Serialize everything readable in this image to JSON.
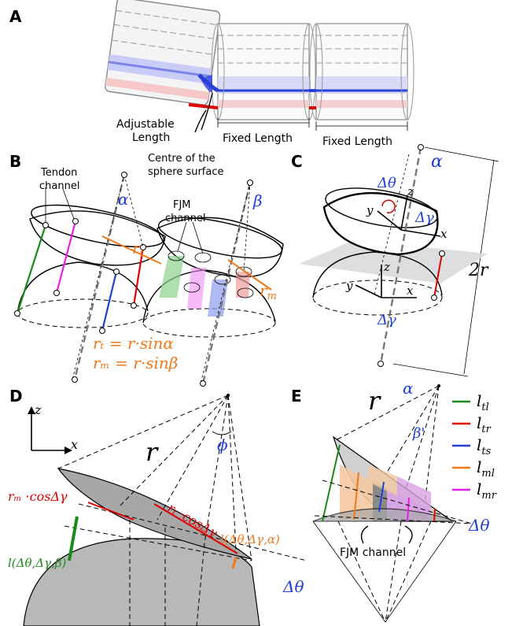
{
  "panels": {
    "a": {
      "letter": "A",
      "adjustable_1": "Adjustable",
      "adjustable_2": "Length",
      "fixed_1": "Fixed Length",
      "fixed_2": "Fixed Length"
    },
    "b": {
      "letter": "B",
      "centre_1": "Centre of the",
      "centre_2": "sphere surface",
      "tendon_1": "Tendon",
      "tendon_2": "channel",
      "fjm_1": "FJM",
      "fjm_2": "channel",
      "alpha": "α",
      "beta": "β",
      "rt": "r",
      "rt_sub": "t",
      "rm": "r",
      "rm_sub": "m",
      "eq1": "rₜ = r·sinα",
      "eq2": "rₘ = r·sinβ"
    },
    "c": {
      "letter": "C",
      "alpha": "α",
      "dtheta": "Δθ",
      "dgamma_top": "Δγ",
      "dgamma_bot": "Δγ",
      "z1": "z",
      "y1": "y",
      "x1": "x",
      "z2": "z",
      "y2": "y",
      "x2": "x",
      "two_r": "2r"
    },
    "d": {
      "letter": "D",
      "z": "z",
      "x": "x",
      "r": "r",
      "phi": "ϕ",
      "rm_cos": "rₘ ·cosΔγ",
      "rt_cos": "rₜ ·cosΔγ",
      "l_left": "l(Δθ,Δγ,β)",
      "l_right": "l(Δθ,Δγ,α)",
      "dtheta": "Δθ"
    },
    "e": {
      "letter": "E",
      "r": "r",
      "alpha": "α",
      "beta": "β'",
      "fjm": "FJM channel",
      "dtheta": "Δθ"
    }
  },
  "legend": [
    {
      "name": "l",
      "sub": "tl",
      "color": "#1a8a1a"
    },
    {
      "name": "l",
      "sub": "tr",
      "color": "#e00000"
    },
    {
      "name": "l",
      "sub": "ts",
      "color": "#1f3fd6"
    },
    {
      "name": "l",
      "sub": "ml",
      "color": "#f07818"
    },
    {
      "name": "l",
      "sub": "mr",
      "color": "#e81ee8"
    }
  ]
}
